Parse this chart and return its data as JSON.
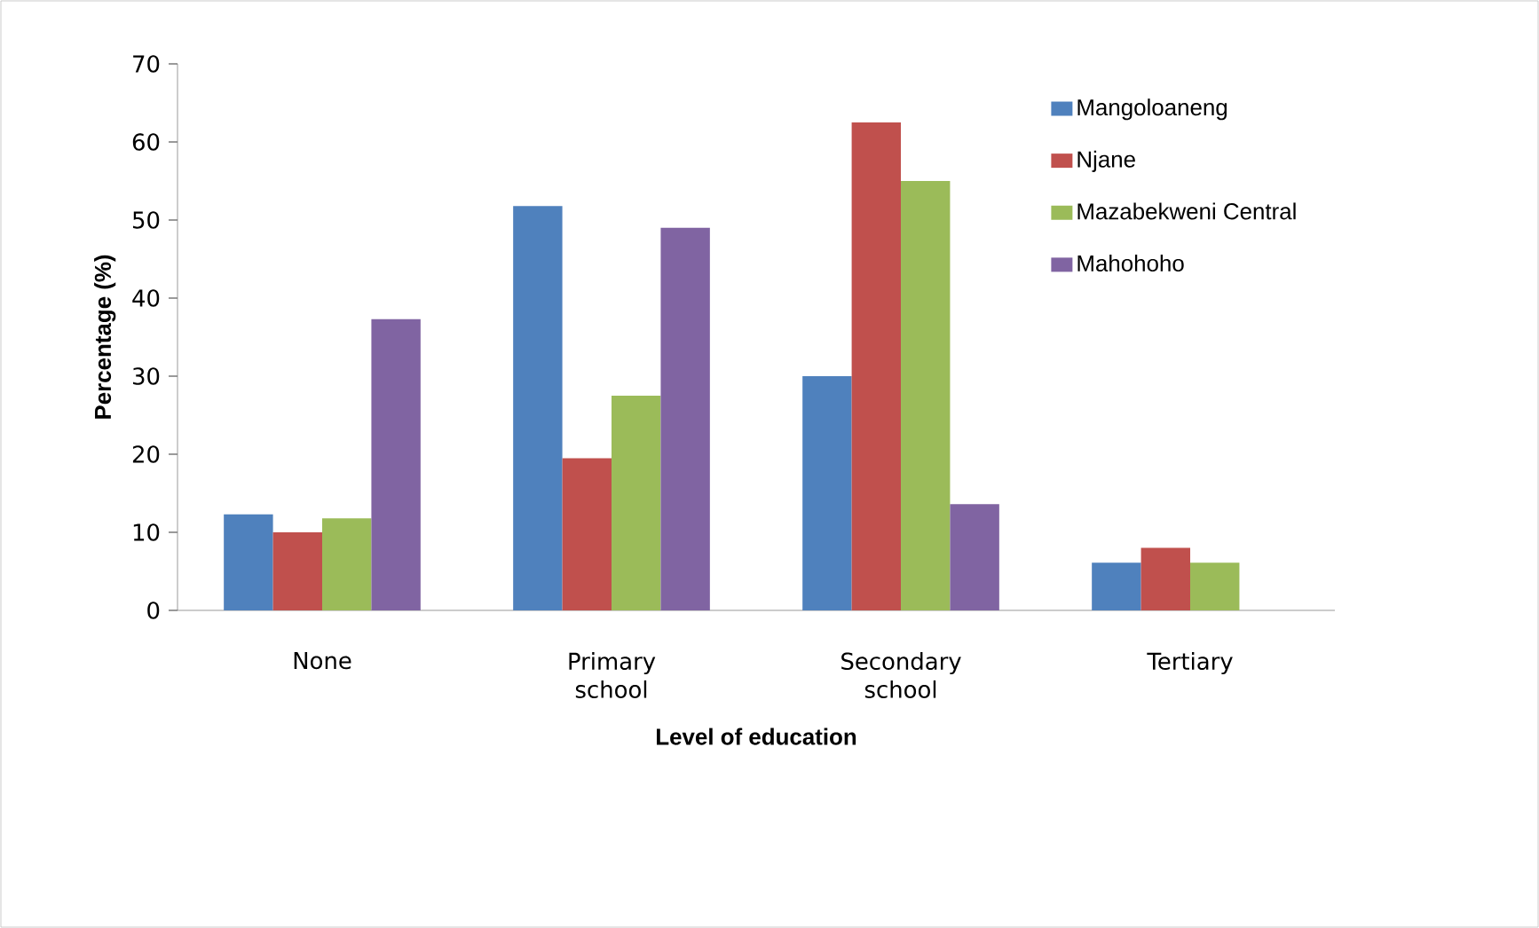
{
  "chart_data": {
    "type": "bar",
    "xlabel": "Level of education",
    "ylabel": "Percentage (%)",
    "categories": [
      "None",
      "Primary school",
      "Secondary school",
      "Tertiary"
    ],
    "series": [
      {
        "name": "Mangoloaneng",
        "color": "#4f81bd",
        "values": [
          12.3,
          51.8,
          30,
          6.1
        ]
      },
      {
        "name": "Njane",
        "color": "#c0504d",
        "values": [
          10,
          19.5,
          62.5,
          8
        ]
      },
      {
        "name": "Mazabekweni Central",
        "color": "#9bbb59",
        "values": [
          11.8,
          27.5,
          55,
          6.1
        ]
      },
      {
        "name": "Mahohoho",
        "color": "#8064a2",
        "values": [
          37.3,
          49,
          13.6,
          null
        ]
      }
    ],
    "ylim": [
      0,
      70
    ],
    "yticks": [
      0,
      10,
      20,
      30,
      40,
      50,
      60,
      70
    ],
    "grid": false,
    "legend": "top right"
  }
}
